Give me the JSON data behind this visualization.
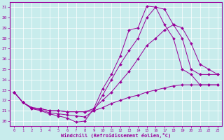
{
  "xlabel": "Windchill (Refroidissement éolien,°C)",
  "bg_color": "#c8ecec",
  "line_color": "#990099",
  "grid_color": "#aadddd",
  "xlim": [
    -0.5,
    23.5
  ],
  "ylim": [
    19.5,
    31.5
  ],
  "yticks": [
    20,
    21,
    22,
    23,
    24,
    25,
    26,
    27,
    28,
    29,
    30,
    31
  ],
  "xticks": [
    0,
    1,
    2,
    3,
    4,
    5,
    6,
    7,
    8,
    9,
    10,
    11,
    12,
    13,
    14,
    15,
    16,
    17,
    18,
    19,
    20,
    21,
    22,
    23
  ],
  "lines": [
    {
      "x": [
        0,
        1,
        2,
        3,
        4,
        5,
        6,
        7,
        8,
        9,
        10,
        11,
        12,
        13,
        14,
        15,
        16,
        17,
        18,
        19,
        20,
        21,
        22,
        23
      ],
      "y": [
        22.8,
        21.8,
        21.2,
        21.0,
        20.7,
        20.5,
        20.3,
        19.9,
        20.0,
        21.2,
        23.1,
        24.5,
        26.3,
        28.8,
        29.0,
        31.1,
        31.0,
        29.3,
        28.0,
        25.0,
        24.5,
        23.5,
        23.5,
        23.5
      ]
    },
    {
      "x": [
        0,
        1,
        2,
        3,
        4,
        5,
        6,
        7,
        8,
        9,
        10,
        11,
        12,
        13,
        14,
        15,
        16,
        17,
        18,
        19,
        20,
        21,
        22,
        23
      ],
      "y": [
        22.8,
        21.8,
        21.2,
        21.1,
        20.8,
        20.7,
        20.6,
        20.5,
        20.4,
        21.0,
        22.5,
        24.0,
        25.5,
        26.8,
        28.0,
        30.0,
        31.0,
        30.8,
        29.3,
        28.0,
        25.0,
        24.5,
        24.5,
        24.5
      ]
    },
    {
      "x": [
        0,
        1,
        2,
        3,
        4,
        5,
        6,
        7,
        8,
        9,
        10,
        11,
        12,
        13,
        14,
        15,
        16,
        17,
        18,
        19,
        20,
        21,
        22,
        23
      ],
      "y": [
        22.8,
        21.8,
        21.3,
        21.2,
        21.0,
        21.0,
        20.9,
        20.9,
        20.9,
        21.2,
        22.0,
        22.8,
        23.8,
        24.8,
        26.0,
        27.3,
        28.0,
        28.8,
        29.3,
        29.0,
        27.5,
        25.5,
        25.0,
        24.5
      ]
    },
    {
      "x": [
        0,
        1,
        2,
        3,
        4,
        5,
        6,
        7,
        8,
        9,
        10,
        11,
        12,
        13,
        14,
        15,
        16,
        17,
        18,
        19,
        20,
        21,
        22,
        23
      ],
      "y": [
        22.8,
        21.8,
        21.3,
        21.2,
        21.0,
        21.0,
        20.9,
        20.9,
        20.9,
        21.0,
        21.3,
        21.7,
        22.0,
        22.3,
        22.5,
        22.8,
        23.0,
        23.2,
        23.4,
        23.5,
        23.5,
        23.5,
        23.5,
        23.5
      ]
    }
  ]
}
